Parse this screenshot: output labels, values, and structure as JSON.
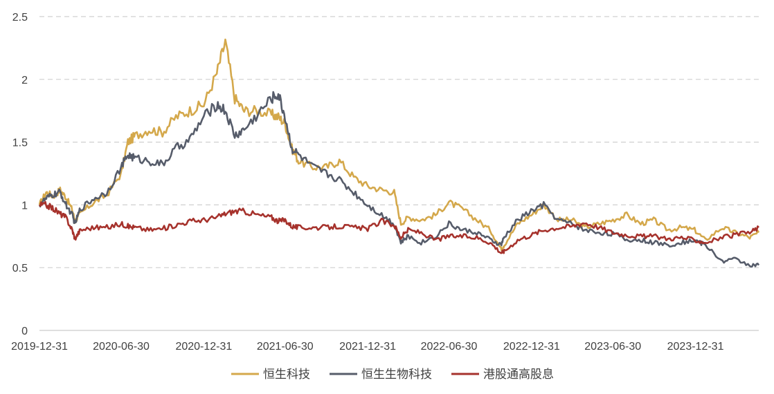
{
  "chart_data": {
    "type": "line",
    "ylim": [
      0,
      2.5
    ],
    "y_ticks": [
      "0",
      "0.5",
      "1",
      "1.5",
      "2",
      "2.5"
    ],
    "x_ticks": [
      "2019-12-31",
      "2020-06-30",
      "2020-12-31",
      "2021-06-30",
      "2021-12-31",
      "2022-06-30",
      "2022-12-31",
      "2023-06-30",
      "2023-12-31"
    ],
    "grid": "horizontal dashed",
    "legend_position": "bottom",
    "x": [
      "2019-12-31",
      "2020-01-15",
      "2020-01-31",
      "2020-02-15",
      "2020-02-28",
      "2020-03-13",
      "2020-03-19",
      "2020-03-31",
      "2020-04-30",
      "2020-05-29",
      "2020-06-30",
      "2020-07-15",
      "2020-07-31",
      "2020-08-31",
      "2020-09-30",
      "2020-10-30",
      "2020-11-30",
      "2020-12-31",
      "2021-01-29",
      "2021-02-17",
      "2021-03-10",
      "2021-03-31",
      "2021-04-30",
      "2021-05-31",
      "2021-06-15",
      "2021-06-30",
      "2021-07-15",
      "2021-07-30",
      "2021-08-31",
      "2021-09-30",
      "2021-10-29",
      "2021-11-30",
      "2021-12-31",
      "2022-01-31",
      "2022-02-28",
      "2022-03-15",
      "2022-03-31",
      "2022-04-29",
      "2022-05-31",
      "2022-06-30",
      "2022-07-29",
      "2022-08-31",
      "2022-09-30",
      "2022-10-24",
      "2022-10-31",
      "2022-11-30",
      "2022-12-30",
      "2023-01-27",
      "2023-02-28",
      "2023-03-31",
      "2023-04-28",
      "2023-05-31",
      "2023-06-30",
      "2023-07-31",
      "2023-08-31",
      "2023-09-29",
      "2023-10-31",
      "2023-11-30",
      "2023-12-29",
      "2024-01-22",
      "2024-02-29",
      "2024-03-28",
      "2024-04-30",
      "2024-05-20"
    ],
    "series": [
      {
        "name": "恒生科技",
        "color": "#D4A84B",
        "values": [
          1.0,
          1.1,
          1.07,
          1.12,
          1.06,
          0.96,
          0.87,
          0.93,
          1.02,
          1.08,
          1.25,
          1.5,
          1.55,
          1.6,
          1.58,
          1.7,
          1.75,
          1.8,
          2.05,
          2.3,
          1.85,
          1.75,
          1.75,
          1.72,
          1.7,
          1.65,
          1.45,
          1.35,
          1.3,
          1.3,
          1.35,
          1.22,
          1.15,
          1.12,
          1.1,
          0.85,
          0.9,
          0.88,
          0.92,
          1.02,
          0.97,
          0.88,
          0.8,
          0.65,
          0.68,
          0.85,
          0.92,
          1.0,
          0.88,
          0.88,
          0.82,
          0.85,
          0.88,
          0.92,
          0.85,
          0.88,
          0.8,
          0.82,
          0.8,
          0.72,
          0.82,
          0.78,
          0.74,
          0.78
        ]
      },
      {
        "name": "恒生生物科技",
        "color": "#565C6A",
        "values": [
          1.0,
          1.05,
          1.08,
          1.1,
          1.0,
          0.92,
          0.85,
          0.97,
          1.05,
          1.1,
          1.3,
          1.4,
          1.37,
          1.35,
          1.32,
          1.45,
          1.52,
          1.7,
          1.8,
          1.75,
          1.55,
          1.6,
          1.72,
          1.85,
          1.88,
          1.7,
          1.45,
          1.4,
          1.3,
          1.25,
          1.2,
          1.1,
          1.0,
          0.92,
          0.85,
          0.7,
          0.75,
          0.7,
          0.75,
          0.85,
          0.8,
          0.78,
          0.72,
          0.68,
          0.74,
          0.88,
          0.95,
          1.0,
          0.88,
          0.85,
          0.8,
          0.78,
          0.77,
          0.72,
          0.72,
          0.7,
          0.68,
          0.7,
          0.72,
          0.68,
          0.55,
          0.57,
          0.52,
          0.52
        ]
      },
      {
        "name": "港股通高股息",
        "color": "#A6322C",
        "values": [
          1.0,
          1.0,
          0.97,
          0.93,
          0.9,
          0.8,
          0.73,
          0.8,
          0.82,
          0.82,
          0.85,
          0.83,
          0.82,
          0.8,
          0.81,
          0.84,
          0.87,
          0.88,
          0.9,
          0.93,
          0.95,
          0.95,
          0.92,
          0.9,
          0.87,
          0.88,
          0.83,
          0.82,
          0.82,
          0.82,
          0.83,
          0.82,
          0.81,
          0.87,
          0.84,
          0.74,
          0.8,
          0.78,
          0.72,
          0.75,
          0.75,
          0.74,
          0.7,
          0.62,
          0.63,
          0.72,
          0.76,
          0.8,
          0.82,
          0.83,
          0.86,
          0.82,
          0.78,
          0.76,
          0.75,
          0.75,
          0.73,
          0.74,
          0.72,
          0.7,
          0.74,
          0.76,
          0.78,
          0.82
        ]
      }
    ]
  }
}
